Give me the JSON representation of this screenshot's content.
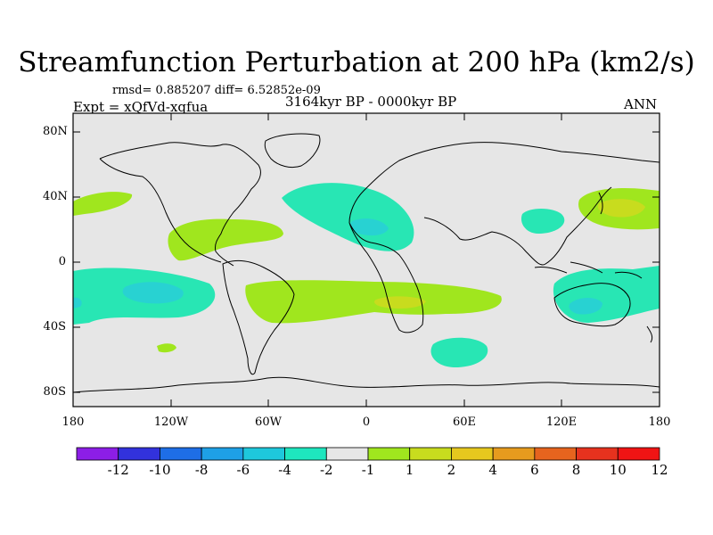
{
  "title": "Streamfunction Perturbation at 200 hPa (km2/s)",
  "stats": "rmsd= 0.885207 diff= 6.52852e-09",
  "period": "3164kyr BP - 0000kyr BP",
  "experiment": "Expt = xQfVd-xqfua",
  "season": "ANN",
  "lat_labels": [
    "80N",
    "40N",
    "0",
    "40S",
    "80S"
  ],
  "lon_labels": [
    "180",
    "120W",
    "60W",
    "0",
    "60E",
    "120E",
    "180"
  ],
  "colorbar": {
    "colors": [
      "#8c1ee6",
      "#3232dc",
      "#1e6ee6",
      "#1ea0e6",
      "#1ec8dc",
      "#1ee6be",
      "#e6e6e6",
      "#a0e61e",
      "#c8dc1e",
      "#e6c81e",
      "#e69b1e",
      "#e6641e",
      "#e6321e",
      "#f01414"
    ],
    "labels": [
      "-12",
      "-10",
      "-8",
      "-6",
      "-4",
      "-2",
      "-1",
      "1",
      "2",
      "4",
      "6",
      "8",
      "10",
      "12"
    ]
  },
  "palette": {
    "background": "#e6e6e6",
    "neg_2": "#28e6b4",
    "neg_4": "#28d2d2",
    "pos_1": "#a0e61e",
    "pos_2": "#c8dc1e"
  }
}
